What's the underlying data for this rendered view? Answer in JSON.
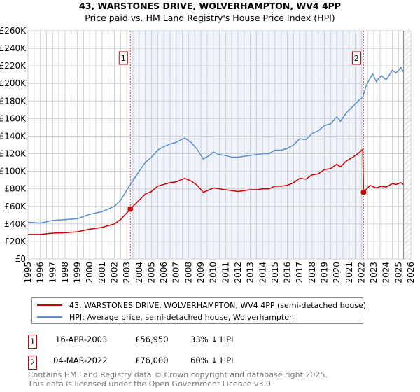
{
  "chart_data": {
    "type": "line",
    "title": "43, WARSTONES DRIVE, WOLVERHAMPTON, WV4 4PP",
    "subtitle": "Price paid vs. HM Land Registry's House Price Index (HPI)",
    "xlabel": "",
    "ylabel": "",
    "xlim": [
      1995,
      2026
    ],
    "ylim": [
      0,
      260000
    ],
    "grid": true,
    "x_ticks": [
      "1995",
      "1996",
      "1997",
      "1998",
      "1999",
      "2000",
      "2001",
      "2002",
      "2003",
      "2004",
      "2005",
      "2006",
      "2007",
      "2008",
      "2009",
      "2010",
      "2011",
      "2012",
      "2013",
      "2014",
      "2015",
      "2016",
      "2017",
      "2018",
      "2019",
      "2020",
      "2021",
      "2022",
      "2023",
      "2024",
      "2025",
      "2026"
    ],
    "y_ticks": [
      {
        "v": 0,
        "label": "£0"
      },
      {
        "v": 20000,
        "label": "£20K"
      },
      {
        "v": 40000,
        "label": "£40K"
      },
      {
        "v": 60000,
        "label": "£60K"
      },
      {
        "v": 80000,
        "label": "£80K"
      },
      {
        "v": 100000,
        "label": "£100K"
      },
      {
        "v": 120000,
        "label": "£120K"
      },
      {
        "v": 140000,
        "label": "£140K"
      },
      {
        "v": 160000,
        "label": "£160K"
      },
      {
        "v": 180000,
        "label": "£180K"
      },
      {
        "v": 200000,
        "label": "£200K"
      },
      {
        "v": 220000,
        "label": "£220K"
      },
      {
        "v": 240000,
        "label": "£240K"
      },
      {
        "v": 260000,
        "label": "£260K"
      }
    ],
    "series": [
      {
        "name": "43, WARSTONES DRIVE, WOLVERHAMPTON, WV4 4PP (semi-detached house)",
        "color": "#cc0000",
        "x": [
          1995,
          1996,
          1997,
          1998,
          1999,
          2000,
          2001,
          2002,
          2002.5,
          2003.29,
          2004,
          2004.5,
          2005,
          2005.5,
          2006,
          2006.5,
          2007,
          2007.7,
          2008.2,
          2008.7,
          2009.2,
          2009.7,
          2010,
          2010.5,
          2011,
          2011.5,
          2012,
          2012.5,
          2013,
          2013.5,
          2014,
          2014.5,
          2015,
          2015.5,
          2016,
          2016.5,
          2017,
          2017.5,
          2018,
          2018.5,
          2019,
          2019.5,
          2020,
          2020.3,
          2020.8,
          2021.3,
          2021.8,
          2022.1,
          2022.17,
          2022.7,
          2023.2,
          2023.6,
          2024,
          2024.5,
          2024.8,
          2025.2,
          2025.4
        ],
        "y": [
          28000,
          28000,
          29500,
          30000,
          31000,
          34000,
          36000,
          40000,
          45000,
          56950,
          67000,
          74000,
          77000,
          83000,
          85000,
          87000,
          88000,
          92000,
          89000,
          84000,
          76000,
          79000,
          81000,
          80000,
          79000,
          78000,
          77000,
          78000,
          79000,
          79000,
          80000,
          80000,
          83000,
          83000,
          84000,
          87000,
          92000,
          91000,
          96000,
          97000,
          102000,
          103000,
          108000,
          105000,
          112000,
          116000,
          121000,
          125000,
          76000,
          84000,
          81000,
          83000,
          82000,
          86000,
          85000,
          87000,
          85000
        ]
      },
      {
        "name": "HPI: Average price, semi-detached house, Wolverhampton",
        "color": "#5b8fd0",
        "x": [
          1995,
          1996,
          1997,
          1998,
          1999,
          2000,
          2001,
          2002,
          2002.5,
          2003.29,
          2004,
          2004.5,
          2005,
          2005.5,
          2006,
          2006.5,
          2007,
          2007.7,
          2008.2,
          2008.7,
          2009.2,
          2009.7,
          2010,
          2010.5,
          2011,
          2011.5,
          2012,
          2012.5,
          2013,
          2013.5,
          2014,
          2014.5,
          2015,
          2015.5,
          2016,
          2016.5,
          2017,
          2017.5,
          2018,
          2018.5,
          2019,
          2019.5,
          2020,
          2020.3,
          2020.8,
          2021.3,
          2021.8,
          2022.1,
          2022.4,
          2022.7,
          2022.9,
          2023.2,
          2023.6,
          2024,
          2024.5,
          2024.8,
          2025.2,
          2025.4
        ],
        "y": [
          42000,
          41000,
          44000,
          45000,
          46000,
          51000,
          54000,
          60000,
          67000,
          85000,
          100000,
          110000,
          116000,
          124000,
          128000,
          131000,
          133000,
          138000,
          133000,
          125000,
          114000,
          118000,
          122000,
          119000,
          118000,
          116000,
          116000,
          117000,
          118000,
          119000,
          120000,
          120000,
          124000,
          124000,
          126000,
          130000,
          137000,
          136000,
          143000,
          146000,
          152000,
          154000,
          162000,
          157000,
          167000,
          174000,
          181000,
          184000,
          198000,
          206000,
          211000,
          202000,
          209000,
          204000,
          215000,
          212000,
          218000,
          213000
        ]
      }
    ],
    "sales": [
      {
        "n": "1",
        "x": 2003.29,
        "price": 56950
      },
      {
        "n": "2",
        "x": 2022.17,
        "price": 76000
      }
    ],
    "shaded_range": [
      2003.29,
      2022.17
    ],
    "hatch_from": 2025.4,
    "legend_position": "bottom"
  },
  "header": {
    "title": "43, WARSTONES DRIVE, WOLVERHAMPTON, WV4 4PP",
    "subtitle": "Price paid vs. HM Land Registry's House Price Index (HPI)"
  },
  "legend": {
    "property": "43, WARSTONES DRIVE, WOLVERHAMPTON, WV4 4PP (semi-detached house)",
    "hpi": "HPI: Average price, semi-detached house, Wolverhampton"
  },
  "transactions": [
    {
      "n": "1",
      "date": "16-APR-2003",
      "price": "£56,950",
      "diff": "33% ↓ HPI"
    },
    {
      "n": "2",
      "date": "04-MAR-2022",
      "price": "£76,000",
      "diff": "60% ↓ HPI"
    }
  ],
  "footer": {
    "line1": "Contains HM Land Registry data © Crown copyright and database right 2025.",
    "line2": "This data is licensed under the Open Government Licence v3.0."
  }
}
